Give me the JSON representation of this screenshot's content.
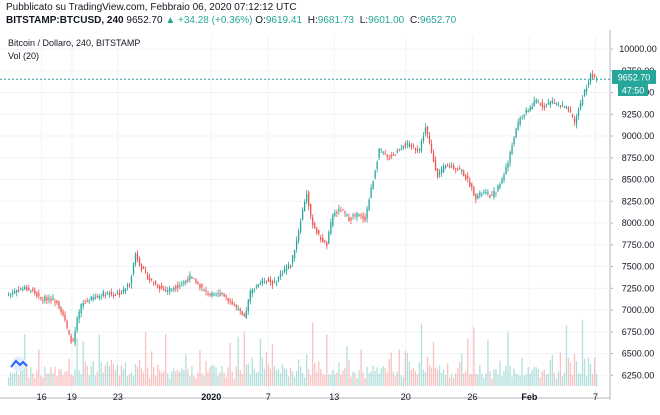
{
  "header": {
    "published": "Pubblicato su TradingView.com, Febbraio 06, 2020 07:12:12 UTC",
    "symbol": "BITSTAMP:BTCUSD, 240",
    "last": "9652.70",
    "change": "▲ +34.28 (+0.36%)",
    "open_label": "O:",
    "open": "9619.41",
    "high_label": "H:",
    "high": "9681.73",
    "low_label": "L:",
    "low": "9601.00",
    "close_label": "C:",
    "close": "9652.70"
  },
  "legend": {
    "title": "Bitcoin / Dollaro, 240, BITSTAMP",
    "volume": "Vol (20)"
  },
  "price_axis": {
    "last_price_badge": "9652.70",
    "countdown_badge": "47:50"
  },
  "colors": {
    "up": "#26a69a",
    "down": "#ef5350",
    "grid": "#f0f3fa",
    "last_line": "#26a69a"
  },
  "chart_data": {
    "type": "candlestick",
    "title": "Bitcoin / Dollaro, 240, BITSTAMP",
    "ylim": [
      6150,
      10150
    ],
    "y_ticks": [
      6250,
      6500,
      6750,
      7000,
      7250,
      7500,
      7750,
      8000,
      8250,
      8500,
      8750,
      9000,
      9250,
      9500,
      9750,
      10000
    ],
    "x_ticks": [
      "16",
      "19",
      "23",
      "2020",
      "7",
      "13",
      "20",
      "26",
      "Feb",
      "7"
    ],
    "last_price": 9652.7,
    "approx_close_path": [
      [
        0,
        7180
      ],
      [
        4,
        7230
      ],
      [
        8,
        7250
      ],
      [
        12,
        7220
      ],
      [
        16,
        7120
      ],
      [
        20,
        7140
      ],
      [
        24,
        7100
      ],
      [
        27,
        6950
      ],
      [
        30,
        6700
      ],
      [
        32,
        6620
      ],
      [
        34,
        6880
      ],
      [
        36,
        7050
      ],
      [
        40,
        7120
      ],
      [
        44,
        7150
      ],
      [
        48,
        7200
      ],
      [
        52,
        7180
      ],
      [
        56,
        7200
      ],
      [
        60,
        7300
      ],
      [
        63,
        7650
      ],
      [
        66,
        7480
      ],
      [
        70,
        7350
      ],
      [
        74,
        7280
      ],
      [
        78,
        7220
      ],
      [
        82,
        7260
      ],
      [
        86,
        7300
      ],
      [
        90,
        7380
      ],
      [
        94,
        7300
      ],
      [
        98,
        7200
      ],
      [
        102,
        7160
      ],
      [
        106,
        7200
      ],
      [
        110,
        7100
      ],
      [
        114,
        7000
      ],
      [
        117,
        6900
      ],
      [
        120,
        7200
      ],
      [
        124,
        7300
      ],
      [
        128,
        7350
      ],
      [
        132,
        7300
      ],
      [
        136,
        7450
      ],
      [
        140,
        7520
      ],
      [
        143,
        7800
      ],
      [
        146,
        8150
      ],
      [
        148,
        8350
      ],
      [
        150,
        8050
      ],
      [
        154,
        7850
      ],
      [
        158,
        7750
      ],
      [
        161,
        8100
      ],
      [
        165,
        8150
      ],
      [
        169,
        8050
      ],
      [
        173,
        8100
      ],
      [
        177,
        8050
      ],
      [
        181,
        8500
      ],
      [
        184,
        8850
      ],
      [
        188,
        8750
      ],
      [
        192,
        8800
      ],
      [
        196,
        8900
      ],
      [
        200,
        8880
      ],
      [
        204,
        8850
      ],
      [
        207,
        9100
      ],
      [
        210,
        8800
      ],
      [
        213,
        8550
      ],
      [
        217,
        8650
      ],
      [
        221,
        8650
      ],
      [
        225,
        8600
      ],
      [
        229,
        8450
      ],
      [
        232,
        8300
      ],
      [
        236,
        8350
      ],
      [
        240,
        8300
      ],
      [
        244,
        8450
      ],
      [
        248,
        8700
      ],
      [
        251,
        9000
      ],
      [
        254,
        9200
      ],
      [
        258,
        9300
      ],
      [
        262,
        9400
      ],
      [
        266,
        9350
      ],
      [
        270,
        9400
      ],
      [
        274,
        9350
      ],
      [
        278,
        9300
      ],
      [
        281,
        9150
      ],
      [
        285,
        9450
      ],
      [
        289,
        9700
      ],
      [
        292,
        9652.7
      ]
    ],
    "volume_relative": [
      0.1,
      0.14,
      0.2,
      0.14,
      0.24,
      0.12,
      0.17,
      0.28,
      0.52,
      0.25,
      0.1,
      0.2,
      0.14,
      0.09,
      0.15,
      0.4,
      0.12,
      0.1,
      0.24,
      0.13,
      0.17,
      0.2,
      0.22,
      0.18,
      0.1,
      0.16,
      0.3,
      0.18,
      0.12,
      0.26,
      0.42,
      0.12,
      0.08,
      0.2,
      0.55,
      0.16,
      0.12,
      0.6,
      0.34,
      0.22,
      0.18,
      0.32,
      0.24,
      0.12,
      0.22,
      0.8,
      0.28,
      0.16,
      0.4,
      0.26,
      0.18,
      0.5,
      0.2,
      0.14,
      0.24,
      0.12,
      0.28,
      0.18,
      0.22,
      0.1,
      0.16,
      0.12,
      0.14,
      0.26,
      0.34,
      0.3,
      0.18,
      0.12,
      0.55,
      0.2,
      0.1,
      0.65,
      0.22,
      0.16,
      0.3,
      0.2,
      0.12,
      0.16,
      0.7,
      0.18
    ]
  }
}
